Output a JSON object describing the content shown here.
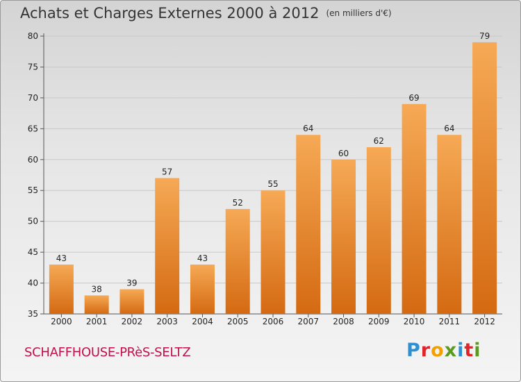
{
  "header": {
    "title": "Achats et Charges Externes 2000 à 2012",
    "subtitle": "(en milliers d'€)"
  },
  "footer": {
    "town": "SCHAFFHOUSE-PRèS-SELTZ",
    "logo_letters": [
      "P",
      "r",
      "o",
      "x",
      "i",
      "t",
      "i"
    ],
    "logo_colors": [
      "#2f8fd0",
      "#e2242a",
      "#f2a000",
      "#5a9a1e",
      "#2f8fd0",
      "#e2242a",
      "#5a9a1e"
    ]
  },
  "colors": {
    "bar_light": "#f6a955",
    "bar_dark": "#d46a12",
    "grid": "#c8c8c8",
    "town": "#c0104a"
  },
  "chart_data": {
    "type": "bar",
    "title": "Achats et Charges Externes 2000 à 2012",
    "subtitle": "(en milliers d'€)",
    "categories": [
      "2000",
      "2001",
      "2002",
      "2003",
      "2004",
      "2005",
      "2006",
      "2007",
      "2008",
      "2009",
      "2010",
      "2011",
      "2012"
    ],
    "values": [
      43,
      38,
      39,
      57,
      43,
      52,
      55,
      64,
      60,
      62,
      69,
      64,
      79
    ],
    "ylim": [
      35,
      80
    ],
    "yticks": [
      35,
      40,
      45,
      50,
      55,
      60,
      65,
      70,
      75,
      80
    ],
    "grid": true,
    "xlabel": "",
    "ylabel": ""
  }
}
